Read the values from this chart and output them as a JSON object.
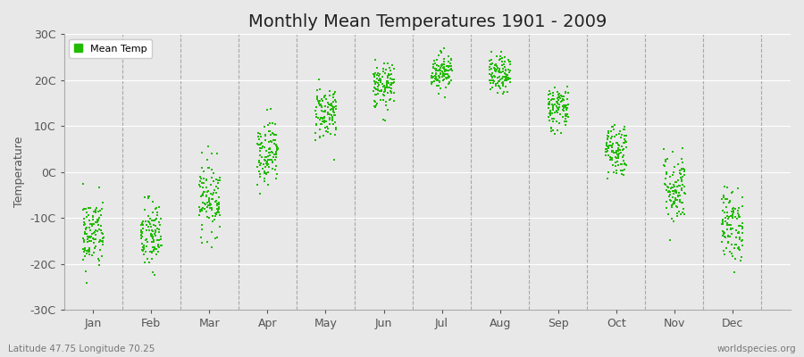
{
  "title": "Monthly Mean Temperatures 1901 - 2009",
  "ylabel": "Temperature",
  "xlabel_bottom_left": "Latitude 47.75 Longitude 70.25",
  "xlabel_bottom_right": "worldspecies.org",
  "marker_color": "#22bb00",
  "marker_size": 3,
  "ylim": [
    -30,
    30
  ],
  "ytick_labels": [
    "-30C",
    "-20C",
    "-10C",
    "0C",
    "10C",
    "20C",
    "30C"
  ],
  "ytick_values": [
    -30,
    -20,
    -10,
    0,
    10,
    20,
    30
  ],
  "months": [
    "Jan",
    "Feb",
    "Mar",
    "Apr",
    "May",
    "Jun",
    "Jul",
    "Aug",
    "Sep",
    "Oct",
    "Nov",
    "Dec"
  ],
  "background_color": "#e8e8e8",
  "plot_bg_color": "#e8e8e8",
  "legend_label": "Mean Temp",
  "monthly_mean_temps": [
    -13.5,
    -14.0,
    -5.5,
    4.5,
    13.0,
    18.5,
    22.0,
    21.0,
    14.0,
    5.0,
    -3.5,
    -11.5
  ],
  "monthly_std_temps": [
    4.0,
    4.0,
    4.0,
    3.5,
    3.0,
    2.5,
    2.0,
    2.0,
    2.5,
    3.0,
    4.0,
    4.0
  ],
  "n_years": 109,
  "x_spread": 0.18,
  "xlim_left": 0.0,
  "xlim_right": 12.5,
  "dashed_line_color": "#999999",
  "dashed_line_positions": [
    1.0,
    2.0,
    3.0,
    4.0,
    5.0,
    6.0,
    7.0,
    8.0,
    9.0,
    10.0,
    11.0,
    12.0
  ],
  "xtick_positions": [
    0.5,
    1.5,
    2.5,
    3.5,
    4.5,
    5.5,
    6.5,
    7.5,
    8.5,
    9.5,
    10.5,
    11.5
  ],
  "title_fontsize": 14,
  "axis_label_fontsize": 9,
  "ylabel_fontsize": 9
}
